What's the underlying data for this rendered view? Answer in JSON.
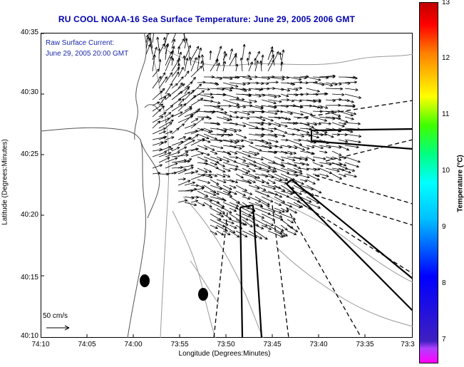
{
  "title": "RU COOL  NOAA-16  Sea Surface Temperature:  June 29, 2005 2006 GMT",
  "legend": {
    "line1": "Raw Surface Current:",
    "line2": "June 29, 2005 20:00 GMT"
  },
  "scale": {
    "label": "50 cm/s"
  },
  "axes": {
    "xlabel": "Longitude (Degrees:Minutes)",
    "ylabel": "Latitude (Degrees:Minutes)",
    "xticks": [
      "74:10",
      "74:05",
      "74:00",
      "73:55",
      "73:50",
      "73:45",
      "73:40",
      "73:35",
      "73:3"
    ],
    "yticks": [
      "40:35",
      "40:30",
      "40:25",
      "40:20",
      "40:15",
      "40:10"
    ]
  },
  "colorbar": {
    "title": "Temperature (°C)",
    "ticks": [
      "13",
      "12",
      "11",
      "10",
      "9",
      "8",
      "7"
    ],
    "range": [
      6.5,
      13
    ]
  },
  "colors": {
    "title": "#0000b0",
    "legend": "#1a2aa8",
    "vectors": "#000000",
    "coast": "#7a7a7a"
  }
}
